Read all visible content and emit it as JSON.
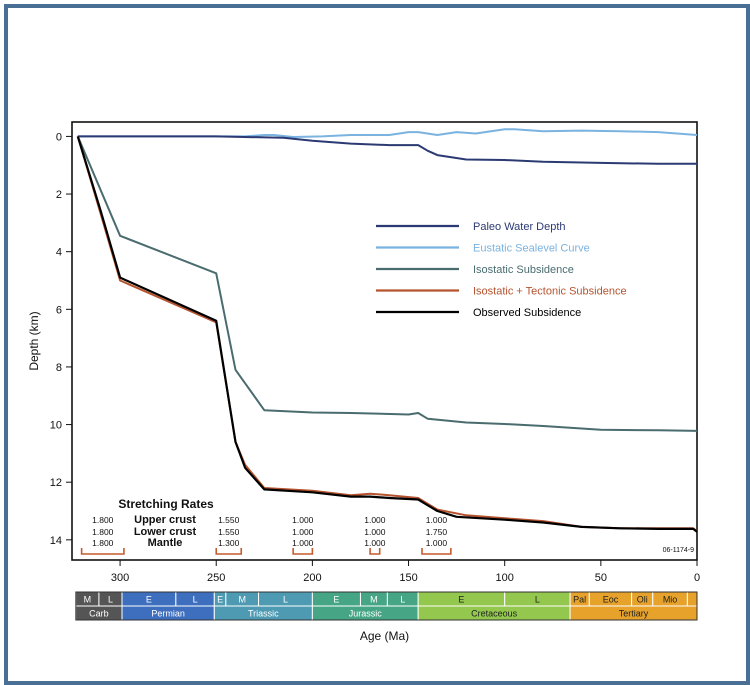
{
  "chart_data": {
    "type": "line",
    "xlabel": "Age (Ma)",
    "ylabel": "Depth (km)",
    "xlim": [
      325,
      0
    ],
    "ylim": [
      0,
      14.5
    ],
    "xticks": [
      300,
      250,
      200,
      150,
      100,
      50,
      0
    ],
    "yticks": [
      0,
      2,
      4,
      6,
      8,
      10,
      12,
      14
    ],
    "legend_position": "center-right",
    "series": [
      {
        "name": "Paleo Water Depth",
        "color": "#2b3a73",
        "points": [
          [
            322,
            0
          ],
          [
            250,
            0
          ],
          [
            215,
            0.05
          ],
          [
            200,
            0.15
          ],
          [
            180,
            0.25
          ],
          [
            160,
            0.3
          ],
          [
            145,
            0.3
          ],
          [
            140,
            0.5
          ],
          [
            135,
            0.65
          ],
          [
            120,
            0.8
          ],
          [
            100,
            0.82
          ],
          [
            80,
            0.88
          ],
          [
            50,
            0.92
          ],
          [
            20,
            0.95
          ],
          [
            0,
            0.95
          ]
        ]
      },
      {
        "name": "Eustatic Sealevel Curve",
        "color": "#7ab3e0",
        "points": [
          [
            322,
            0
          ],
          [
            250,
            0
          ],
          [
            235,
            0
          ],
          [
            225,
            -0.05
          ],
          [
            220,
            -0.05
          ],
          [
            210,
            0.02
          ],
          [
            195,
            0
          ],
          [
            180,
            -0.05
          ],
          [
            170,
            -0.05
          ],
          [
            160,
            -0.05
          ],
          [
            150,
            -0.15
          ],
          [
            145,
            -0.15
          ],
          [
            135,
            -0.05
          ],
          [
            125,
            -0.15
          ],
          [
            115,
            -0.1
          ],
          [
            100,
            -0.25
          ],
          [
            95,
            -0.25
          ],
          [
            80,
            -0.18
          ],
          [
            60,
            -0.2
          ],
          [
            40,
            -0.18
          ],
          [
            20,
            -0.15
          ],
          [
            0,
            -0.05
          ]
        ]
      },
      {
        "name": "Isostatic Subsidence",
        "color": "#4a6c6f",
        "points": [
          [
            322,
            0
          ],
          [
            300,
            3.45
          ],
          [
            250,
            4.75
          ],
          [
            240,
            8.1
          ],
          [
            225,
            9.5
          ],
          [
            200,
            9.58
          ],
          [
            180,
            9.6
          ],
          [
            150,
            9.65
          ],
          [
            145,
            9.6
          ],
          [
            140,
            9.8
          ],
          [
            120,
            9.93
          ],
          [
            100,
            9.98
          ],
          [
            80,
            10.05
          ],
          [
            50,
            10.18
          ],
          [
            20,
            10.2
          ],
          [
            0,
            10.22
          ]
        ]
      },
      {
        "name": "Isostatic + Tectonic Subsidence",
        "color": "#b5532e",
        "points": [
          [
            322,
            0
          ],
          [
            310,
            2.7
          ],
          [
            300,
            5.0
          ],
          [
            250,
            6.45
          ],
          [
            240,
            10.6
          ],
          [
            235,
            11.4
          ],
          [
            225,
            12.2
          ],
          [
            200,
            12.3
          ],
          [
            180,
            12.45
          ],
          [
            170,
            12.4
          ],
          [
            160,
            12.45
          ],
          [
            145,
            12.55
          ],
          [
            140,
            12.75
          ],
          [
            135,
            12.95
          ],
          [
            120,
            13.15
          ],
          [
            100,
            13.25
          ],
          [
            80,
            13.35
          ],
          [
            60,
            13.55
          ],
          [
            40,
            13.6
          ],
          [
            20,
            13.6
          ],
          [
            2,
            13.6
          ],
          [
            0,
            13.7
          ]
        ]
      },
      {
        "name": "Observed Subsidence",
        "color": "#000000",
        "points": [
          [
            322,
            0
          ],
          [
            310,
            2.6
          ],
          [
            300,
            4.9
          ],
          [
            250,
            6.4
          ],
          [
            240,
            10.6
          ],
          [
            235,
            11.5
          ],
          [
            225,
            12.25
          ],
          [
            200,
            12.35
          ],
          [
            180,
            12.5
          ],
          [
            170,
            12.5
          ],
          [
            160,
            12.55
          ],
          [
            145,
            12.6
          ],
          [
            140,
            12.8
          ],
          [
            135,
            13.0
          ],
          [
            125,
            13.2
          ],
          [
            100,
            13.3
          ],
          [
            80,
            13.4
          ],
          [
            60,
            13.55
          ],
          [
            40,
            13.6
          ],
          [
            20,
            13.62
          ],
          [
            2,
            13.62
          ],
          [
            0,
            13.72
          ]
        ]
      }
    ],
    "stretching_rates": {
      "title": "Stretching Rates",
      "row_labels": [
        "Upper crust",
        "Lower crust",
        "Mantle"
      ],
      "events": [
        {
          "values": [
            "1.800",
            "1.800",
            "1.800"
          ],
          "bracket": [
            320,
            298
          ]
        },
        {
          "values": [
            "1.550",
            "1.550",
            "1.300"
          ],
          "bracket": [
            250,
            237
          ]
        },
        {
          "values": [
            "1.000",
            "1.000",
            "1.000"
          ],
          "bracket": [
            210,
            200
          ]
        },
        {
          "values": [
            "1.000",
            "1.000",
            "1.000"
          ],
          "bracket": [
            170,
            165
          ]
        },
        {
          "values": [
            "1.000",
            "1.750",
            "1.000"
          ],
          "bracket": [
            143,
            128
          ]
        }
      ]
    },
    "figure_id": "06-1174-9"
  },
  "timescale": {
    "epochs": [
      {
        "label": "M",
        "from": 323,
        "to": 311,
        "color": "#555555"
      },
      {
        "label": "L",
        "from": 311,
        "to": 299,
        "color": "#555555"
      },
      {
        "label": "E",
        "from": 299,
        "to": 271,
        "color": "#3e6fbf"
      },
      {
        "label": "L",
        "from": 271,
        "to": 251,
        "color": "#3e6fbf"
      },
      {
        "label": "E",
        "from": 251,
        "to": 245,
        "color": "#4d9ab2"
      },
      {
        "label": "M",
        "from": 245,
        "to": 228,
        "color": "#4d9ab2"
      },
      {
        "label": "L",
        "from": 228,
        "to": 200,
        "color": "#4d9ab2"
      },
      {
        "label": "E",
        "from": 200,
        "to": 175,
        "color": "#45a585"
      },
      {
        "label": "M",
        "from": 175,
        "to": 161,
        "color": "#45a585"
      },
      {
        "label": "L",
        "from": 161,
        "to": 145,
        "color": "#45a585"
      },
      {
        "label": "E",
        "from": 145,
        "to": 100,
        "color": "#93c74e"
      },
      {
        "label": "L",
        "from": 100,
        "to": 66,
        "color": "#93c74e"
      },
      {
        "label": "Pal",
        "from": 66,
        "to": 56,
        "color": "#e6a22b"
      },
      {
        "label": "Eoc",
        "from": 56,
        "to": 34,
        "color": "#e6a22b"
      },
      {
        "label": "Oli",
        "from": 34,
        "to": 23,
        "color": "#e6a22b"
      },
      {
        "label": "Mio",
        "from": 23,
        "to": 5,
        "color": "#e6a22b"
      },
      {
        "label": "",
        "from": 5,
        "to": 0,
        "color": "#e6a22b"
      }
    ],
    "periods": [
      {
        "label": "Carb",
        "from": 323,
        "to": 299,
        "color": "#555555"
      },
      {
        "label": "Permian",
        "from": 299,
        "to": 251,
        "color": "#3e6fbf"
      },
      {
        "label": "Triassic",
        "from": 251,
        "to": 200,
        "color": "#4d9ab2"
      },
      {
        "label": "Jurassic",
        "from": 200,
        "to": 145,
        "color": "#45a585"
      },
      {
        "label": "Cretaceous",
        "from": 145,
        "to": 66,
        "color": "#93c74e"
      },
      {
        "label": "Tertiary",
        "from": 66,
        "to": 0,
        "color": "#e6a22b"
      }
    ]
  }
}
